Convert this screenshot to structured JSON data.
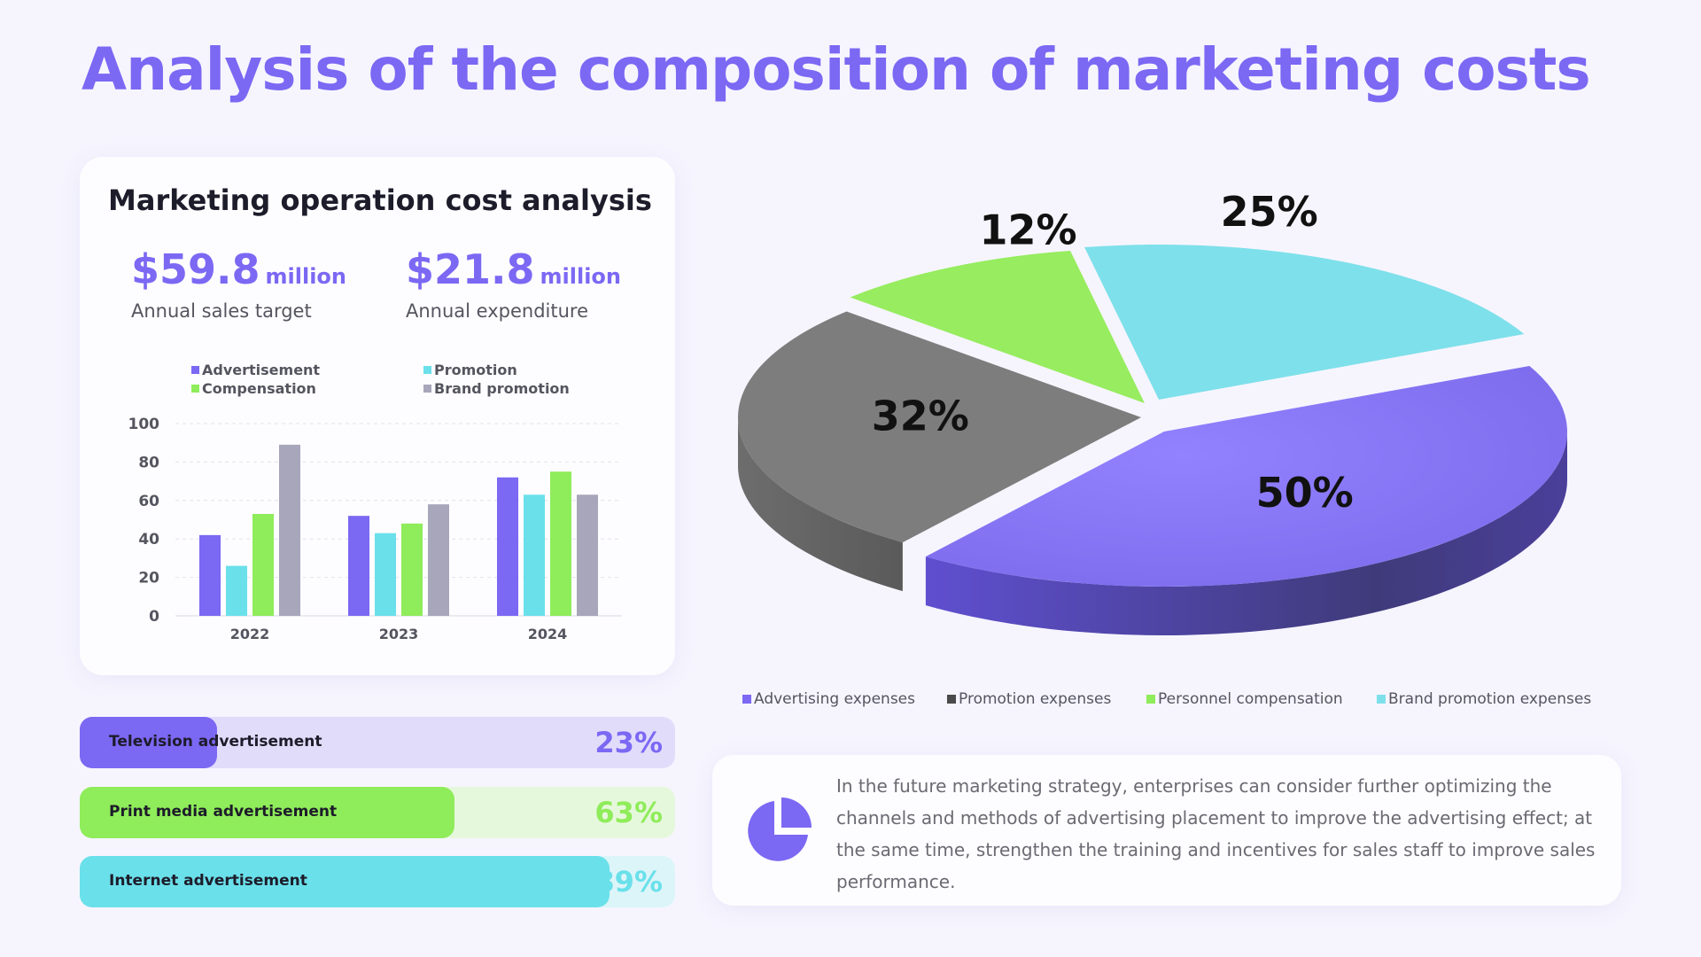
{
  "title": "Analysis of the composition of marketing costs",
  "card": {
    "title": "Marketing operation cost analysis",
    "kpi1": {
      "value": "$59.8",
      "unit": "million",
      "label": "Annual sales target"
    },
    "kpi2": {
      "value": "$21.8",
      "unit": "million",
      "label": "Annual expenditure"
    }
  },
  "progress": [
    {
      "label": "Television advertisement",
      "value_text": "23%",
      "value": 0.23,
      "color": "#7b68f3",
      "track": "#e2dcfb",
      "text_color": "#7b68f3"
    },
    {
      "label": "Print media advertisement",
      "value_text": "63%",
      "value": 0.63,
      "color": "#8fec5a",
      "track": "#e6f8dc",
      "text_color": "#8fec5a"
    },
    {
      "label": "Internet advertisement",
      "value_text": "89%",
      "value": 0.89,
      "color": "#6ae0ea",
      "track": "#dcf5f9",
      "text_color": "#6ae0ea"
    }
  ],
  "note": "In the future marketing strategy, enterprises can consider further optimizing the channels and methods of advertising placement to improve the advertising effect; at the same time, strengthen the training and incentives for sales staff to improve sales performance.",
  "chart_data": [
    {
      "type": "bar",
      "categories": [
        "2022",
        "2023",
        "2024"
      ],
      "series": [
        {
          "name": "Advertisement",
          "values": [
            42,
            52,
            72
          ],
          "color": "#7b68f3"
        },
        {
          "name": "Promotion",
          "values": [
            26,
            43,
            63
          ],
          "color": "#6ae0ea"
        },
        {
          "name": "Compensation",
          "values": [
            53,
            48,
            75
          ],
          "color": "#8fec5a"
        },
        {
          "name": "Brand promotion",
          "values": [
            89,
            58,
            63
          ],
          "color": "#a7a6ba"
        }
      ],
      "ylim": [
        0,
        100
      ],
      "yticks": [
        "0",
        "20",
        "40",
        "60",
        "80",
        "100"
      ],
      "grid": true,
      "legend": "top"
    },
    {
      "type": "pie",
      "slices": [
        {
          "name": "Advertising expenses",
          "label": "50%",
          "value": 50,
          "color": "#7b68f3"
        },
        {
          "name": "Promotion expenses",
          "label": "32%",
          "value": 32,
          "color": "#7a7a7a"
        },
        {
          "name": "Personnel compensation",
          "label": "12%",
          "value": 12,
          "color": "#8fec5a"
        },
        {
          "name": "Brand promotion expenses",
          "label": "25%",
          "value": 25,
          "color": "#7ee0ea"
        }
      ],
      "legend": "bottom"
    }
  ]
}
